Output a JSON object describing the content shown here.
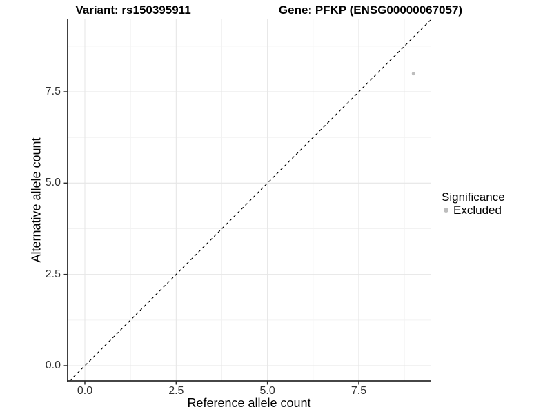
{
  "titles": {
    "variant": "Variant: rs150395911",
    "gene": "Gene: PFKP (ENSG00000067057)"
  },
  "axes": {
    "x": {
      "label": "Reference allele count",
      "tick_labels": [
        "0.0",
        "2.5",
        "5.0",
        "7.5"
      ],
      "tick_values": [
        0,
        2.5,
        5,
        7.5
      ],
      "minor_values": [
        1.25,
        3.75,
        6.25,
        8.75
      ]
    },
    "y": {
      "label": "Alternative allele count",
      "tick_labels": [
        "0.0",
        "2.5",
        "5.0",
        "7.5"
      ],
      "tick_values": [
        0,
        2.5,
        5,
        7.5
      ],
      "minor_values": [
        1.25,
        3.75,
        6.25,
        8.75
      ]
    }
  },
  "legend": {
    "title": "Significance",
    "items": [
      {
        "label": "Excluded",
        "color": "#bdbdbd"
      }
    ]
  },
  "chart_data": {
    "type": "scatter",
    "title": "Variant: rs150395911 | Gene: PFKP (ENSG00000067057)",
    "xlabel": "Reference allele count",
    "ylabel": "Alternative allele count",
    "x_ticks": [
      0,
      2.5,
      5,
      7.5
    ],
    "y_ticks": [
      0,
      2.5,
      5,
      7.5
    ],
    "xlim": [
      -0.45,
      9.5
    ],
    "ylim": [
      -0.45,
      9.5
    ],
    "grid": true,
    "legend_position": "right",
    "series": [
      {
        "name": "Excluded",
        "color": "#bdbdbd",
        "points": [
          {
            "x": 9,
            "y": 8
          }
        ]
      }
    ],
    "reference_line": {
      "slope": 1,
      "intercept": 0,
      "style": "dashed",
      "color": "#000000"
    }
  },
  "colors": {
    "point": "#bdbdbd",
    "axis": "#2b2b2b",
    "grid_major": "#e6e6e6",
    "grid_minor": "#f2f2f2",
    "dashed_line": "#000000"
  }
}
